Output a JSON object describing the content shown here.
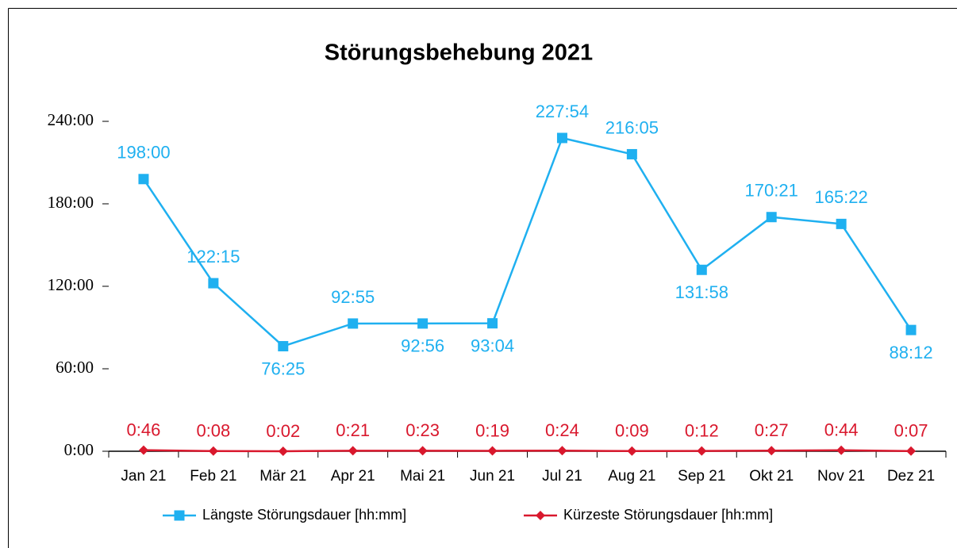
{
  "chart_data": {
    "type": "line",
    "title": "Störungsbehebung 2021",
    "categories": [
      "Jan 21",
      "Feb 21",
      "Mär 21",
      "Apr 21",
      "Mai 21",
      "Jun 21",
      "Jul 21",
      "Aug 21",
      "Sep 21",
      "Okt 21",
      "Nov 21",
      "Dez 21"
    ],
    "series": [
      {
        "name": "Längste Störungsdauer [hh:mm]",
        "color": "#1fb0f0",
        "marker": "square",
        "values": [
          198,
          122.25,
          76.4167,
          92.9167,
          92.9333,
          93.0667,
          227.9,
          216.0833,
          131.9667,
          170.35,
          165.3667,
          88.2
        ],
        "value_labels": [
          "198:00",
          "122:15",
          "76:25",
          "92:55",
          "92:56",
          "93:04",
          "227:54",
          "216:05",
          "131:58",
          "170:21",
          "165:22",
          "88:12"
        ]
      },
      {
        "name": "Kürzeste Störungsdauer [hh:mm]",
        "color": "#d9182d",
        "marker": "diamond",
        "values": [
          0.7667,
          0.1333,
          0.0333,
          0.35,
          0.3833,
          0.3167,
          0.4,
          0.15,
          0.2,
          0.45,
          0.7333,
          0.1167
        ],
        "value_labels": [
          "0:46",
          "0:08",
          "0:02",
          "0:21",
          "0:23",
          "0:19",
          "0:24",
          "0:09",
          "0:12",
          "0:27",
          "0:44",
          "0:07"
        ]
      }
    ],
    "ylim": [
      0,
      240
    ],
    "yticks": [
      {
        "value": 0,
        "label": "0:00"
      },
      {
        "value": 60,
        "label": "60:00"
      },
      {
        "value": 120,
        "label": "120:00"
      },
      {
        "value": 180,
        "label": "180:00"
      },
      {
        "value": 240,
        "label": "240:00"
      }
    ],
    "grid": false,
    "legend": "bottom"
  }
}
